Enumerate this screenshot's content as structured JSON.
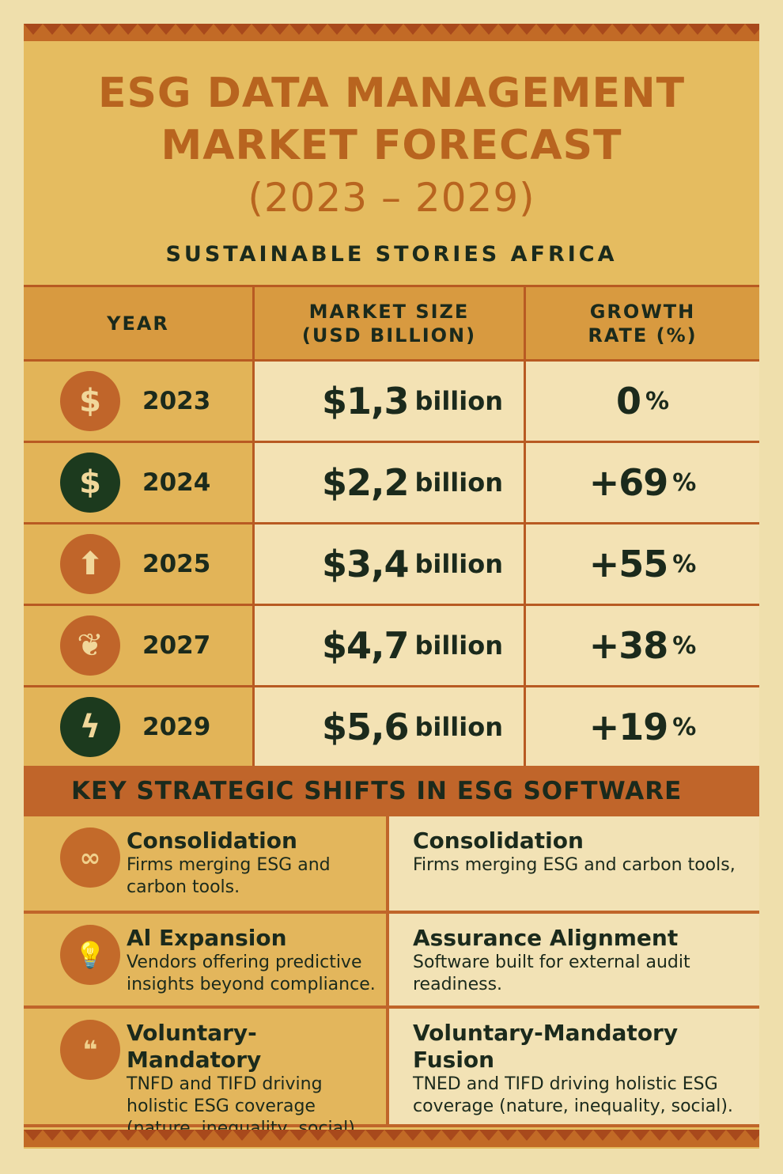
{
  "header": {
    "title_line1": "ESG DATA MANAGEMENT",
    "title_line2": "MARKET FORECAST",
    "title_years": "(2023 – 2029)",
    "subtitle": "SUSTAINABLE STORIES AFRICA"
  },
  "table": {
    "columns": [
      "YEAR",
      "MARKET SIZE (USD BILLION)",
      "GROWTH RATE (%)"
    ],
    "rows": [
      {
        "icon": "dollar-icon",
        "icon_color": "#c0652a",
        "year": "2023",
        "size": "$1,3",
        "unit": "billion",
        "growth": "0",
        "pct": "%"
      },
      {
        "icon": "dollar-icon",
        "icon_color": "#1c3a1e",
        "year": "2024",
        "size": "$2,2",
        "unit": "billion",
        "growth": "+69",
        "pct": "%"
      },
      {
        "icon": "arrow-up-icon",
        "icon_color": "#c0652a",
        "year": "2025",
        "size": "$3,4",
        "unit": "billion",
        "growth": "+55",
        "pct": "%"
      },
      {
        "icon": "leaf-icon",
        "icon_color": "#c0652a",
        "year": "2027",
        "size": "$4,7",
        "unit": "billion",
        "growth": "+38",
        "pct": "%"
      },
      {
        "icon": "lightning-icon",
        "icon_color": "#1c3a1e",
        "year": "2029",
        "size": "$5,6",
        "unit": "billion",
        "growth": "+19",
        "pct": "%"
      }
    ]
  },
  "shifts": {
    "title": "KEY STRATEGIC SHIFTS IN ESG SOFTWARE",
    "rows": [
      {
        "left": {
          "icon": "link-icon",
          "title": "Consolidation",
          "desc": "Firms merging ESG and carbon tools."
        },
        "right": {
          "title": "Consolidation",
          "desc": "Firms merging ESG and carbon tools,"
        }
      },
      {
        "left": {
          "icon": "lightbulb-icon",
          "title": "Al Expansion",
          "desc": "Vendors offering predictive insights beyond compliance."
        },
        "right": {
          "title": "Assurance Alignment",
          "desc": "Software built for external audit readiness."
        }
      },
      {
        "left": {
          "icon": "chat-bubbles-icon",
          "title": "Voluntary-Mandatory",
          "desc": "TNFD and TIFD driving holistic ESG coverage (nature, inequality, social)."
        },
        "right": {
          "title": "Voluntary-Mandatory Fusion",
          "desc": "TNED and TIFD driving holistic ESG coverage (nature, inequality, social)."
        }
      }
    ]
  },
  "colors": {
    "background": "#efdfac",
    "panel": "#e5bc60",
    "accent": "#c0652a",
    "title": "#b8641f",
    "text": "#1b2a1c"
  }
}
